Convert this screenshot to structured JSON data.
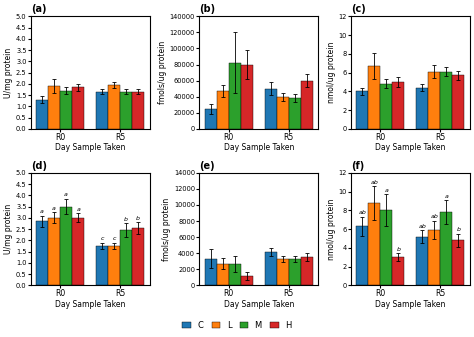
{
  "chart_data": [
    {
      "type": "bar",
      "title": "(a)",
      "x_label": "Day Sample Taken",
      "y_label": "U/mg protein",
      "categories": [
        "R0",
        "R5"
      ],
      "series": [
        {
          "name": "C",
          "values": [
            1.3,
            1.65
          ],
          "errors": [
            0.15,
            0.1
          ]
        },
        {
          "name": "L",
          "values": [
            1.9,
            1.95
          ],
          "errors": [
            0.3,
            0.15
          ]
        },
        {
          "name": "M",
          "values": [
            1.7,
            1.65
          ],
          "errors": [
            0.15,
            0.1
          ]
        },
        {
          "name": "H",
          "values": [
            1.85,
            1.65
          ],
          "errors": [
            0.15,
            0.1
          ]
        }
      ],
      "ylim": [
        0,
        5
      ],
      "yticks": [
        {
          "value": 0,
          "label": "0.0"
        },
        0.5,
        {
          "value": 1,
          "label": "1.0"
        },
        1.5,
        {
          "value": 2,
          "label": "2.0"
        },
        2.5,
        {
          "value": 3,
          "label": "3.0"
        },
        3.5,
        {
          "value": 4,
          "label": "4.0"
        },
        4.5,
        {
          "value": 5,
          "label": "5.0"
        }
      ],
      "legend": "lower center"
    },
    {
      "type": "bar",
      "title": "(b)",
      "x_label": "Day Sample Taken",
      "y_label": "fmols/ug protein",
      "categories": [
        "R0",
        "R5"
      ],
      "series": [
        {
          "name": "C",
          "values": [
            25000,
            50000
          ],
          "errors": [
            6000,
            8000
          ]
        },
        {
          "name": "L",
          "values": [
            47000,
            40000
          ],
          "errors": [
            8000,
            5000
          ]
        },
        {
          "name": "M",
          "values": [
            82000,
            38000
          ],
          "errors": [
            38000,
            5000
          ]
        },
        {
          "name": "H",
          "values": [
            80000,
            60000
          ],
          "errors": [
            18000,
            8000
          ]
        }
      ],
      "ylim": [
        0,
        140000
      ],
      "yticks": [
        0,
        20000,
        40000,
        60000,
        80000,
        100000,
        120000,
        140000
      ],
      "legend": "lower center"
    },
    {
      "type": "bar",
      "title": "(c)",
      "x_label": "Day Sample Taken",
      "y_label": "nmol/ug protein",
      "categories": [
        "R0",
        "R5"
      ],
      "series": [
        {
          "name": "C",
          "values": [
            4.0,
            4.4
          ],
          "errors": [
            0.4,
            0.4
          ]
        },
        {
          "name": "L",
          "values": [
            6.7,
            6.1
          ],
          "errors": [
            1.4,
            0.7
          ]
        },
        {
          "name": "M",
          "values": [
            4.8,
            6.1
          ],
          "errors": [
            0.5,
            0.5
          ]
        },
        {
          "name": "H",
          "values": [
            5.0,
            5.7
          ],
          "errors": [
            0.5,
            0.5
          ]
        }
      ],
      "ylim": [
        0,
        12
      ],
      "yticks": [
        0,
        2,
        4,
        6,
        8,
        10,
        12
      ],
      "legend": "lower center"
    },
    {
      "type": "bar",
      "title": "(d)",
      "x_label": "Day Sample Taken",
      "y_label": "U/mg protein",
      "categories": [
        "R0",
        "R5"
      ],
      "series": [
        {
          "name": "C",
          "values": [
            2.85,
            1.75
          ],
          "errors": [
            0.25,
            0.15
          ],
          "annotations": [
            "a",
            "c"
          ]
        },
        {
          "name": "L",
          "values": [
            3.0,
            1.75
          ],
          "errors": [
            0.25,
            0.15
          ],
          "annotations": [
            "a",
            "c"
          ]
        },
        {
          "name": "M",
          "values": [
            3.5,
            2.45
          ],
          "errors": [
            0.35,
            0.3
          ],
          "annotations": [
            "a",
            "b"
          ]
        },
        {
          "name": "H",
          "values": [
            3.0,
            2.55
          ],
          "errors": [
            0.2,
            0.25
          ],
          "annotations": [
            "a",
            "b"
          ]
        }
      ],
      "ylim": [
        0,
        5
      ],
      "yticks": [
        {
          "value": 0,
          "label": "0.0"
        },
        0.5,
        {
          "value": 1,
          "label": "1.0"
        },
        1.5,
        {
          "value": 2,
          "label": "2.0"
        },
        2.5,
        {
          "value": 3,
          "label": "3.0"
        },
        3.5,
        {
          "value": 4,
          "label": "4.0"
        },
        4.5,
        {
          "value": 5,
          "label": "5.0"
        }
      ],
      "legend": "lower center"
    },
    {
      "type": "bar",
      "title": "(e)",
      "x_label": "Day Sample Taken",
      "y_label": "fmols/ug protein",
      "categories": [
        "R0",
        "R5"
      ],
      "series": [
        {
          "name": "C",
          "values": [
            3300,
            4200
          ],
          "errors": [
            1200,
            500
          ]
        },
        {
          "name": "L",
          "values": [
            2700,
            3300
          ],
          "errors": [
            700,
            400
          ]
        },
        {
          "name": "M",
          "values": [
            2700,
            3300
          ],
          "errors": [
            1000,
            400
          ]
        },
        {
          "name": "H",
          "values": [
            1200,
            3500
          ],
          "errors": [
            500,
            500
          ]
        }
      ],
      "ylim": [
        0,
        14000
      ],
      "yticks": [
        0,
        2000,
        4000,
        6000,
        8000,
        10000,
        12000,
        14000
      ],
      "legend": "lower center"
    },
    {
      "type": "bar",
      "title": "(f)",
      "x_label": "Day Sample Taken",
      "y_label": "nmol/ug protein",
      "categories": [
        "R0",
        "R5"
      ],
      "series": [
        {
          "name": "C",
          "values": [
            6.3,
            5.2
          ],
          "errors": [
            1.0,
            0.7
          ],
          "annotations": [
            "ab",
            "ab"
          ]
        },
        {
          "name": "L",
          "values": [
            8.8,
            5.9
          ],
          "errors": [
            1.8,
            1.0
          ],
          "annotations": [
            "ab",
            "ab"
          ]
        },
        {
          "name": "M",
          "values": [
            8.0,
            7.8
          ],
          "errors": [
            1.7,
            1.3
          ],
          "annotations": [
            "a",
            "a"
          ]
        },
        {
          "name": "H",
          "values": [
            3.0,
            4.8
          ],
          "errors": [
            0.4,
            0.7
          ],
          "annotations": [
            "b",
            "b"
          ]
        }
      ],
      "ylim": [
        0,
        12
      ],
      "yticks": [
        0,
        2,
        4,
        6,
        8,
        10,
        12
      ],
      "legend": "lower center"
    }
  ]
}
